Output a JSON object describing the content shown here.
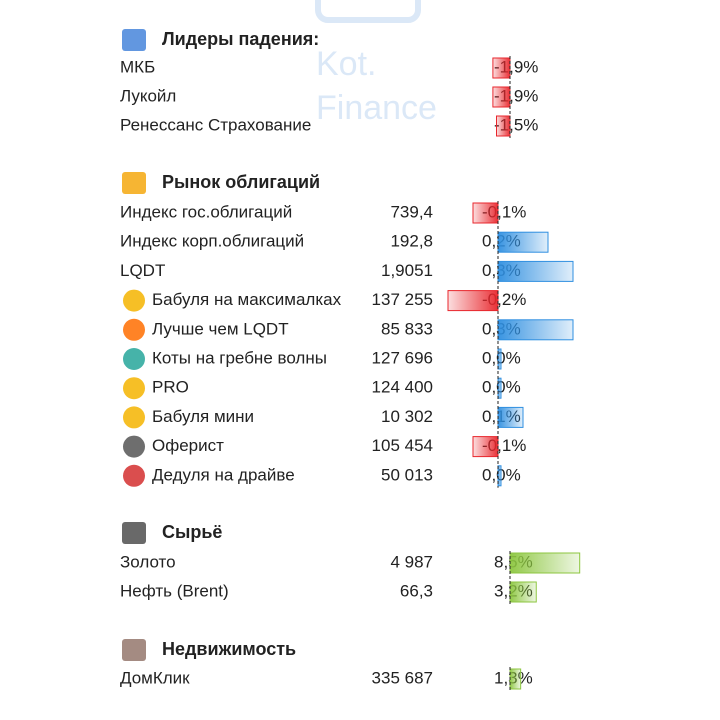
{
  "watermark": [
    "Kot.",
    "Finance"
  ],
  "sections": [
    {
      "title": "Лидеры падения:",
      "positive_color": "#2f8fe0",
      "negative_color": "#e8262c",
      "rows": [
        {
          "name": "МКБ",
          "change": -1.9,
          "change_label": "-1,9%"
        },
        {
          "name": "Лукойл",
          "change": -1.9,
          "change_label": "-1,9%"
        },
        {
          "name": "Ренессанс Страхование",
          "change": -1.5,
          "change_label": "-1,5%"
        }
      ]
    },
    {
      "title": "Рынок облигаций",
      "positive_color": "#2f8fe0",
      "negative_color": "#e8262c",
      "rows": [
        {
          "name": "Индекс гос.облигаций",
          "value": "739,4",
          "change": -0.1,
          "change_label": "-0,1%"
        },
        {
          "name": "Индекс корп.облигаций",
          "value": "192,8",
          "change": 0.2,
          "change_label": "0,2%"
        },
        {
          "name": "LQDT",
          "value": "1,9051",
          "change": 0.3,
          "change_label": "0,3%"
        },
        {
          "name": "Бабуля на максималках",
          "value": "137 255",
          "change": -0.2,
          "change_label": "-0,2%"
        },
        {
          "name": "Лучше чем LQDT",
          "value": "85 833",
          "change": 0.3,
          "change_label": "0,3%"
        },
        {
          "name": "Коты на гребне волны",
          "value": "127 696",
          "change": 0.0,
          "change_label": "0,0%"
        },
        {
          "name": "PRO",
          "value": "124 400",
          "change": 0.0,
          "change_label": "0,0%"
        },
        {
          "name": "Бабуля мини",
          "value": "10 302",
          "change": 0.1,
          "change_label": "0,1%"
        },
        {
          "name": "Оферист",
          "value": "105 454",
          "change": -0.1,
          "change_label": "-0,1%"
        },
        {
          "name": "Дедуля на драйве",
          "value": "50 013",
          "change": 0.0,
          "change_label": "0,0%"
        }
      ]
    },
    {
      "title": "Сырьё",
      "positive_color": "#8cc63f",
      "negative_color": "#e8262c",
      "rows": [
        {
          "name": "Золото",
          "value": "4 987",
          "change": 8.5,
          "change_label": "8,5%"
        },
        {
          "name": "Нефть (Brent)",
          "value": "66,3",
          "change": 3.2,
          "change_label": "3,2%"
        }
      ]
    },
    {
      "title": "Недвижимость",
      "positive_color": "#8cc63f",
      "negative_color": "#e8262c",
      "rows": [
        {
          "name": "ДомКлик",
          "value": "335 687",
          "change": 1.3,
          "change_label": "1,3%"
        }
      ]
    }
  ]
}
